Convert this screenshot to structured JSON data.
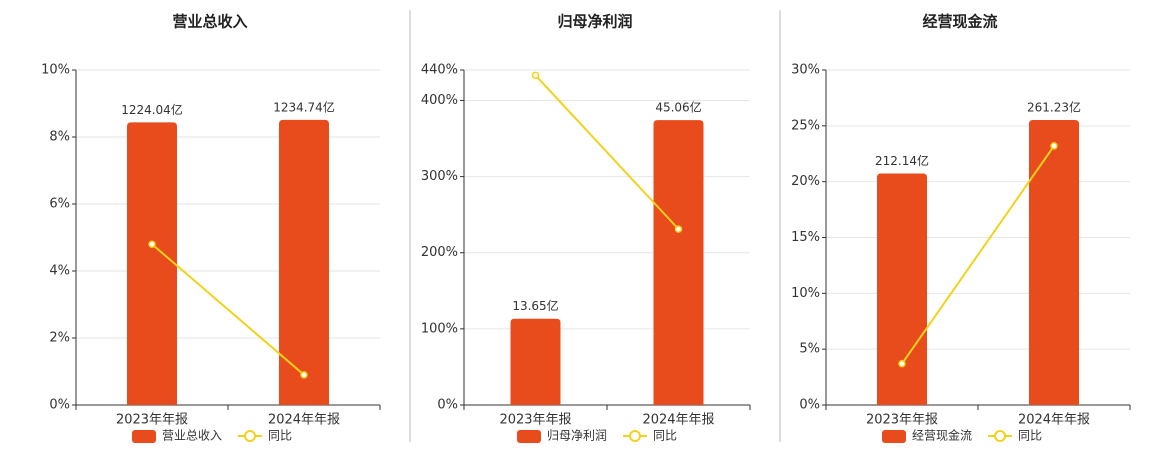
{
  "chart_data": [
    {
      "type": "bar-line",
      "title": "营业总收入",
      "categories": [
        "2023年年报",
        "2024年年报"
      ],
      "series": [
        {
          "name": "营业总收入",
          "color": "#e84c1c",
          "axis": "y2",
          "values": [
            1224.04,
            1234.74
          ],
          "value_labels": [
            "1224.04亿",
            "1234.74亿"
          ]
        },
        {
          "name": "同比",
          "color": "#f2d21b",
          "values": [
            4.8,
            0.9
          ]
        }
      ],
      "ylim": [
        0,
        10
      ],
      "yticks": [
        {
          "value": 0,
          "label": "0%"
        },
        {
          "value": 2,
          "label": "2%"
        },
        {
          "value": 4,
          "label": "4%"
        },
        {
          "value": 6,
          "label": "6%"
        },
        {
          "value": 8,
          "label": "8%"
        },
        {
          "value": 10,
          "label": "10%"
        }
      ],
      "y2lim": [
        0,
        1451
      ],
      "grid": true
    },
    {
      "type": "bar-line",
      "title": "归母净利润",
      "categories": [
        "2023年年报",
        "2024年年报"
      ],
      "series": [
        {
          "name": "归母净利润",
          "color": "#e84c1c",
          "axis": "y2",
          "values": [
            13.65,
            45.06
          ],
          "value_labels": [
            "13.65亿",
            "45.06亿"
          ]
        },
        {
          "name": "同比",
          "color": "#f2d21b",
          "values": [
            433,
            231
          ]
        }
      ],
      "ylim": [
        0,
        440
      ],
      "yticks": [
        {
          "value": 0,
          "label": "0%"
        },
        {
          "value": 100,
          "label": "100%"
        },
        {
          "value": 200,
          "label": "200%"
        },
        {
          "value": 300,
          "label": "300%"
        },
        {
          "value": 400,
          "label": "400%"
        },
        {
          "value": 440,
          "label": "440%"
        }
      ],
      "y2lim": [
        0,
        53
      ],
      "grid": true
    },
    {
      "type": "bar-line",
      "title": "经营现金流",
      "categories": [
        "2023年年报",
        "2024年年报"
      ],
      "series": [
        {
          "name": "经营现金流",
          "color": "#e84c1c",
          "axis": "y2",
          "values": [
            212.14,
            261.23
          ],
          "value_labels": [
            "212.14亿",
            "261.23亿"
          ]
        },
        {
          "name": "同比",
          "color": "#f2d21b",
          "values": [
            3.7,
            23.2
          ]
        }
      ],
      "ylim": [
        0,
        30
      ],
      "yticks": [
        {
          "value": 0,
          "label": "0%"
        },
        {
          "value": 5,
          "label": "5%"
        },
        {
          "value": 10,
          "label": "10%"
        },
        {
          "value": 15,
          "label": "15%"
        },
        {
          "value": 20,
          "label": "20%"
        },
        {
          "value": 25,
          "label": "25%"
        },
        {
          "value": 30,
          "label": "30%"
        }
      ],
      "y2lim": [
        0,
        307
      ],
      "grid": true
    }
  ]
}
